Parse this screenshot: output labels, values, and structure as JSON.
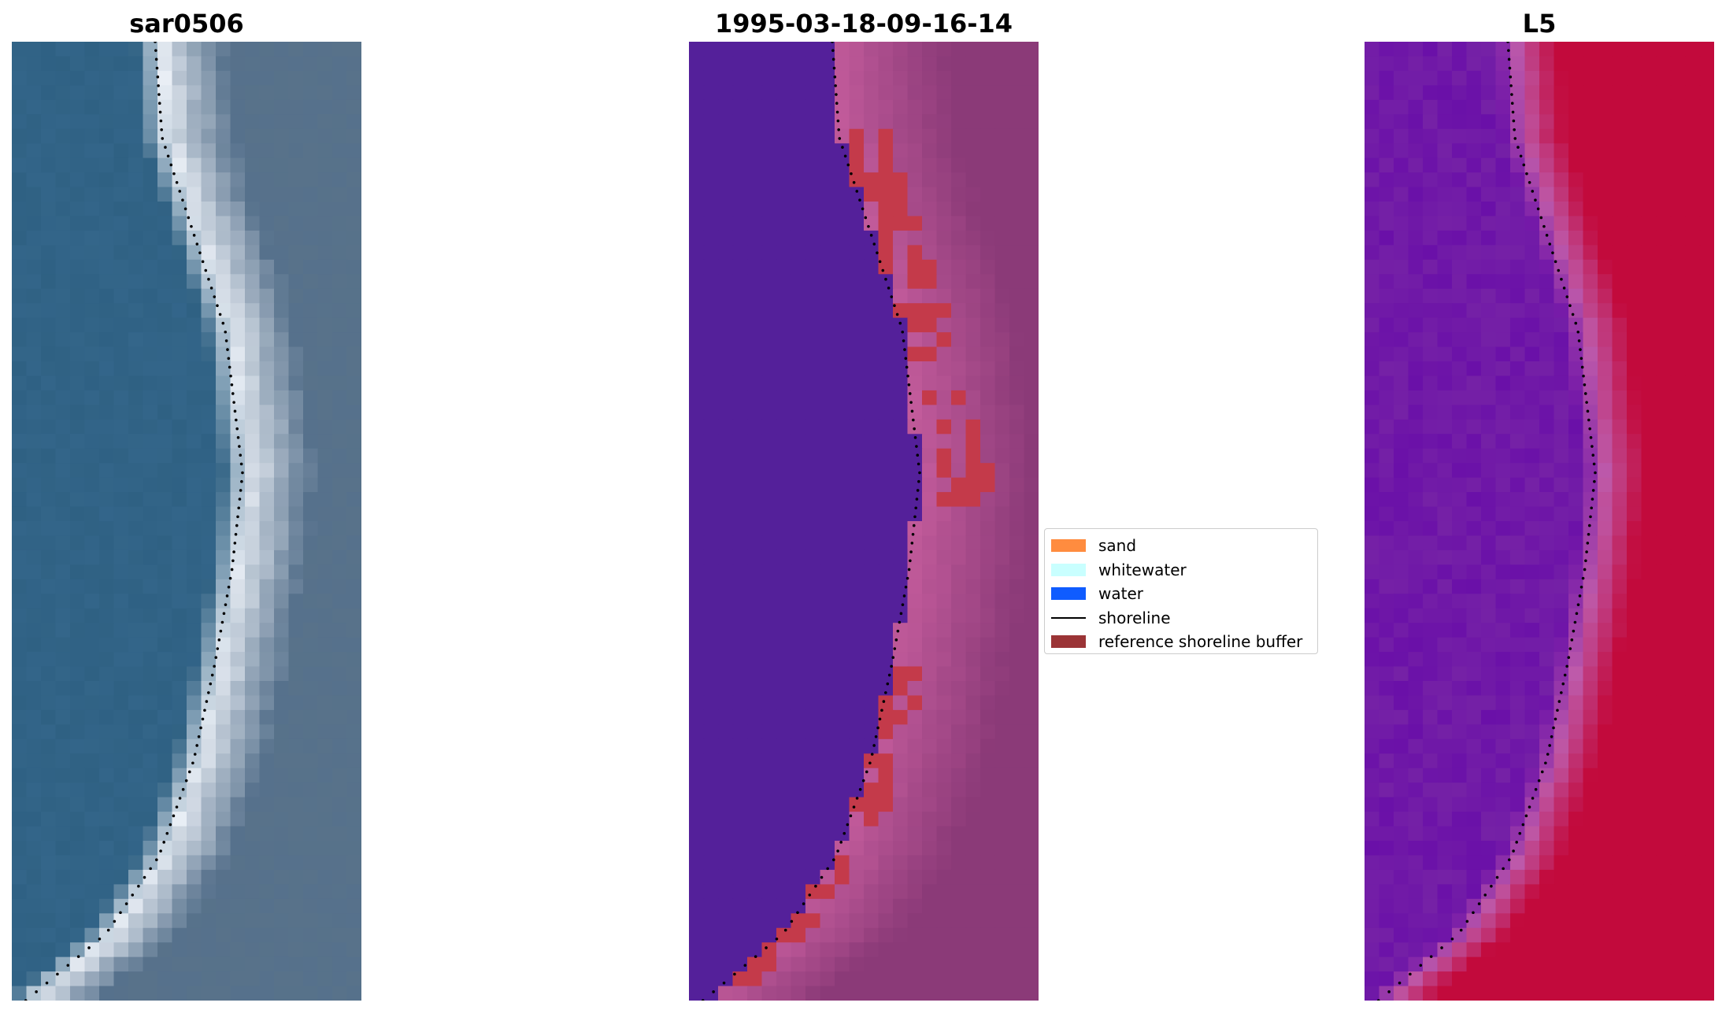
{
  "panels": [
    {
      "id": "rgb",
      "title": "sar0506"
    },
    {
      "id": "classified",
      "title": "1995-03-18-09-16-14"
    },
    {
      "id": "index",
      "title": "L5"
    }
  ],
  "legend": {
    "items": [
      {
        "label": "sand",
        "type": "patch",
        "color": "#ff8c3f"
      },
      {
        "label": "whitewater",
        "type": "patch",
        "color": "#c9ffff"
      },
      {
        "label": "water",
        "type": "patch",
        "color": "#0f5cff"
      },
      {
        "label": "shoreline",
        "type": "line",
        "color": "#000000"
      },
      {
        "label": "reference shoreline buffer",
        "type": "patch",
        "color": "#9b3436"
      }
    ]
  },
  "colors": {
    "water_rgb": "#2f6183",
    "surf_rgb": "#e9eef5",
    "land_rgb": "#56718c",
    "classified_water": "#54209a",
    "classified_land": "#8b3a78",
    "classified_edge": "#c45c9c",
    "buffer": "#c43a4a",
    "index_low": "#6a10a8",
    "index_high": "#c20a3c"
  }
}
